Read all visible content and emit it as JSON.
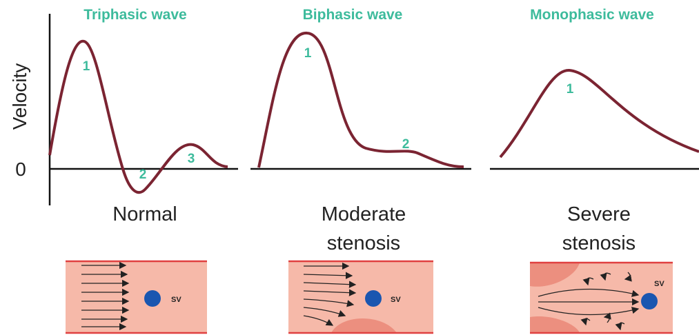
{
  "axis": {
    "y_label": "Velocity",
    "zero_label": "0"
  },
  "panels": [
    {
      "title": "Triphasic wave",
      "peaks": [
        "1",
        "2",
        "3"
      ],
      "condition": [
        "Normal"
      ],
      "vessel_label": "SV"
    },
    {
      "title": "Biphasic wave",
      "peaks": [
        "1",
        "2"
      ],
      "condition": [
        "Moderate",
        "stenosis"
      ],
      "vessel_label": "SV"
    },
    {
      "title": "Monophasic wave",
      "peaks": [
        "1"
      ],
      "condition": [
        "Severe",
        "stenosis"
      ],
      "vessel_label": "SV"
    }
  ]
}
